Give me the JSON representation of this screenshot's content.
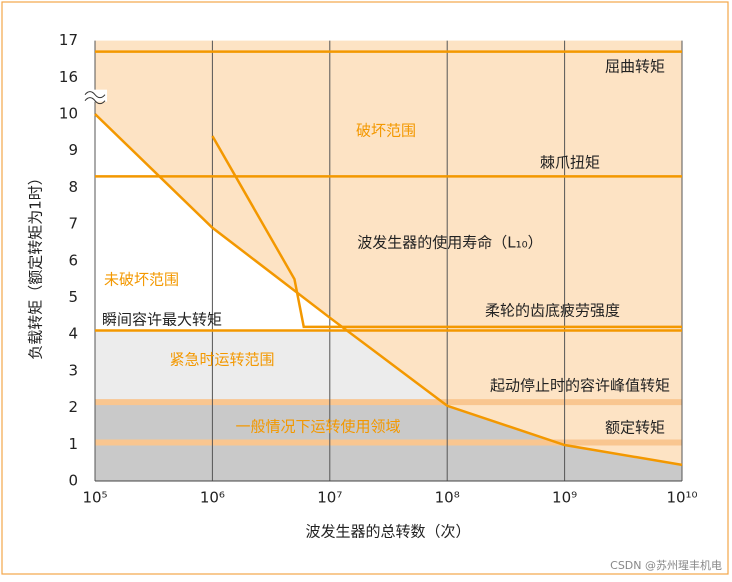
{
  "chart_data": {
    "type": "line",
    "xlabel": "波发生器的总转数（次）",
    "ylabel": "负载转矩（额定转矩为1时）",
    "xscale": "log",
    "xlim": [
      100000,
      10000000000
    ],
    "xticks": [
      {
        "value": 100000,
        "label": "10⁵"
      },
      {
        "value": 1000000,
        "label": "10⁶"
      },
      {
        "value": 10000000,
        "label": "10⁷"
      },
      {
        "value": 100000000,
        "label": "10⁸"
      },
      {
        "value": 1000000000,
        "label": "10⁹"
      },
      {
        "value": 10000000000,
        "label": "10¹⁰"
      }
    ],
    "ylim": [
      0,
      17
    ],
    "yticks": [
      0,
      1,
      2,
      3,
      4,
      5,
      6,
      7,
      8,
      9,
      10,
      16,
      17
    ],
    "ybreak": [
      10,
      16
    ],
    "grid": "x",
    "background": "#fde3c4",
    "series": [
      {
        "color": "#f39800",
        "x": [
          100000,
          1000000,
          10000000,
          100000000,
          1000000000,
          10000000000
        ],
        "values": [
          10,
          6.9,
          4.45,
          2.05,
          0.98,
          0.44
        ]
      },
      {
        "color": "#f39800",
        "x": [
          1000000,
          5000000,
          6000000,
          10000000000
        ],
        "values": [
          9.4,
          5.5,
          4.2,
          4.2
        ]
      }
    ],
    "regions": [
      {
        "ymin": 4.1,
        "ymax": 17,
        "color": "#ffffff"
      },
      {
        "ymin": 2.2,
        "ymax": 4.1,
        "color": "#ececec"
      },
      {
        "ymin": 0,
        "ymax": 2.1,
        "color": "#c9c9c9"
      }
    ],
    "bands": [
      {
        "value": 2.15,
        "color": "#f9c690"
      },
      {
        "value": 1.05,
        "color": "#f9c690"
      }
    ],
    "hlines": [
      {
        "value": 16.7,
        "color": "#f39800"
      },
      {
        "value": 8.3,
        "color": "#f39800"
      },
      {
        "value": 4.1,
        "color": "#f39800"
      }
    ],
    "annotations": [
      {
        "text": "屈曲转矩",
        "color": "#222222"
      },
      {
        "text": "破坏范围",
        "color": "#f39800"
      },
      {
        "text": "棘爪扭矩",
        "color": "#222222"
      },
      {
        "text": "波发生器的使用寿命（L₁₀）",
        "color": "#222222"
      },
      {
        "text": "未破坏范围",
        "color": "#f39800"
      },
      {
        "text": "瞬间容许最大转矩",
        "color": "#222222"
      },
      {
        "text": "柔轮的齿底疲劳强度",
        "color": "#222222"
      },
      {
        "text": "紧急时运转范围",
        "color": "#f39800"
      },
      {
        "text": "起动停止时的容许峰值转矩",
        "color": "#222222"
      },
      {
        "text": "一般情况下运转使用领域",
        "color": "#f39800"
      },
      {
        "text": "额定转矩",
        "color": "#222222"
      }
    ],
    "watermark": "CSDN @苏州瑆丰机电"
  }
}
